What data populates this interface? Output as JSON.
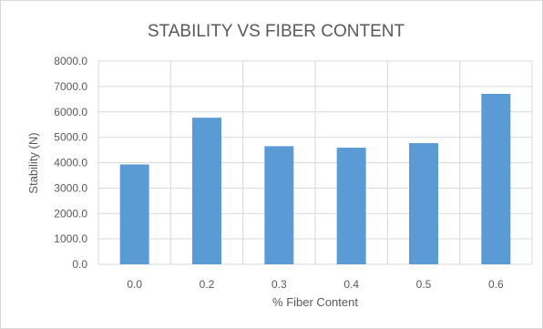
{
  "chart_data": {
    "type": "bar",
    "title": "STABILITY VS FIBER CONTENT",
    "xlabel": "% Fiber Content",
    "ylabel": "Stability (N)",
    "categories": [
      "0.0",
      "0.2",
      "0.3",
      "0.4",
      "0.5",
      "0.6"
    ],
    "values": [
      3930,
      5770,
      4650,
      4590,
      4770,
      6710
    ],
    "ylim": [
      0,
      8000
    ],
    "yticks": [
      "0.0",
      "1000.0",
      "2000.0",
      "3000.0",
      "4000.0",
      "5000.0",
      "6000.0",
      "7000.0",
      "8000.0"
    ],
    "grid": "vertical and horizontal",
    "legend": "none",
    "bar_color": "#5b9bd5",
    "grid_color": "#d9d9d9"
  }
}
